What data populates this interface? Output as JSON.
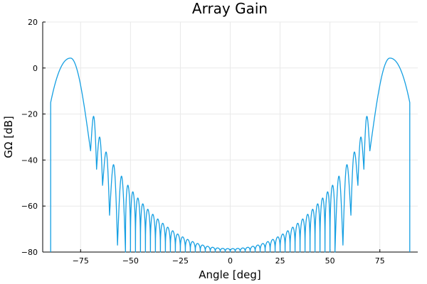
{
  "chart_data": {
    "type": "line",
    "title": "Array Gain",
    "xlabel": "Angle [deg]",
    "ylabel": "GΩ [dB]",
    "xlim": [
      -94,
      94
    ],
    "ylim": [
      -80,
      20
    ],
    "xticks": [
      -75,
      -50,
      -25,
      0,
      25,
      50,
      75
    ],
    "xtick_labels": [
      "−75",
      "−50",
      "−25",
      "0",
      "25",
      "50",
      "75"
    ],
    "yticks": [
      20,
      0,
      -20,
      -40,
      -60,
      -80
    ],
    "ytick_labels": [
      "20",
      "0",
      "−20",
      "−40",
      "−60",
      "−80"
    ],
    "grid": true,
    "legend": "none",
    "color": "#159fe2",
    "series": [
      {
        "domain": [
          -90,
          90
        ],
        "main_lobe": {
          "peak_angle_deg": 80,
          "peak_gain_db": 4.3,
          "edge_gain_db": -15
        },
        "sidelobes": [
          {
            "null_angle_deg": 70,
            "null_gain_db": -36,
            "peak_angle_deg": 68.5,
            "peak_gain_db": -21
          },
          {
            "null_angle_deg": 67,
            "null_gain_db": -44,
            "peak_angle_deg": 65,
            "peak_gain_db": -30
          },
          {
            "null_angle_deg": 64,
            "null_gain_db": -51,
            "peak_angle_deg": 62,
            "peak_gain_db": -36.5
          },
          {
            "null_angle_deg": 60.5,
            "null_gain_db": -64,
            "peak_angle_deg": 58.5,
            "peak_gain_db": -42
          },
          {
            "null_angle_deg": 56.5,
            "null_gain_db": -77,
            "peak_angle_deg": 54.5,
            "peak_gain_db": -47
          }
        ],
        "center_gain_db": -78.5,
        "floor_gain_db": -80,
        "null_spacing_deg": 2.5
      }
    ]
  }
}
